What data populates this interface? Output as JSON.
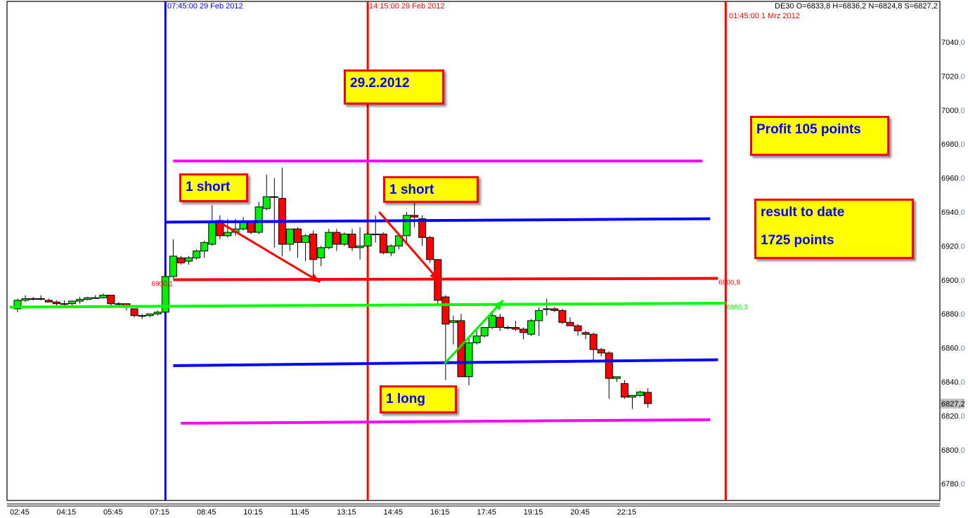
{
  "header": {
    "symbol": "DE30",
    "ohlc": "O=6833,8 H=6836,2 N=6824,8 S=6827,2"
  },
  "vertical_markers": [
    {
      "label": "07:45:00 29 Feb 2012",
      "time": "29.02 07:45",
      "color": "#0000ff"
    },
    {
      "label": "14:15:00 29 Feb 2012",
      "time": "29.02 14:15",
      "color": "#ff0000"
    },
    {
      "label": "01:45:00 1 Mrz 2012",
      "time": "01.03 01:45",
      "color": "#ff0000"
    }
  ],
  "notes": {
    "date": "29.2.2012",
    "short1": "1 short",
    "short2": "1 short",
    "long1": "1 long",
    "profit": "Profit 105 points",
    "result_line1": "result to date",
    "result_line2": "1725 points"
  },
  "colors": {
    "up": "#00ee00",
    "down": "#ff0000",
    "magenta": "#ff00ff",
    "blue": "#0000ff",
    "green": "#00ff00",
    "red": "#ff0000"
  },
  "chart_data": {
    "type": "candlestick",
    "symbol": "DE30",
    "interval_minutes": 15,
    "ylim": [
      6770,
      7050
    ],
    "y_ticks": [
      7040,
      7020,
      7000,
      6980,
      6960,
      6940,
      6920,
      6900,
      6880,
      6860,
      6840,
      6820,
      6800,
      6780
    ],
    "y_tick_labels": [
      "7040,0",
      "7020,0",
      "7000,0",
      "6980,0",
      "6960,0",
      "6940,0",
      "6920,0",
      "6900,0",
      "6880,0",
      "6860,0",
      "6840,0",
      "6827,2",
      "6820,0",
      "6800,0",
      "6780,0"
    ],
    "last_price_label": "6827,2",
    "last_price": 6827.2,
    "x_tick_labels": [
      "02:45",
      "04:15",
      "05:45",
      "07:15",
      "08:45",
      "10:15",
      "11:45",
      "13:15",
      "14:45",
      "16:15",
      "17:45",
      "19:15",
      "20:45",
      "22:15"
    ],
    "candles": [
      [
        "03:00",
        6883,
        6889,
        6881,
        6888
      ],
      [
        "03:15",
        6888,
        6891,
        6887,
        6889
      ],
      [
        "03:30",
        6889,
        6890,
        6888,
        6889
      ],
      [
        "03:45",
        6889,
        6891,
        6888,
        6889
      ],
      [
        "04:00",
        6888,
        6889,
        6887,
        6887
      ],
      [
        "04:15",
        6887,
        6888,
        6885,
        6886
      ],
      [
        "04:30",
        6886,
        6888,
        6884,
        6886
      ],
      [
        "04:45",
        6886,
        6888,
        6885,
        6887.5
      ],
      [
        "05:00",
        6887.5,
        6890,
        6886,
        6888.5
      ],
      [
        "05:15",
        6888.5,
        6890,
        6888,
        6889.5
      ],
      [
        "05:30",
        6889.5,
        6891,
        6889,
        6889.5
      ],
      [
        "05:45",
        6889.5,
        6892,
        6889,
        6891
      ],
      [
        "06:00",
        6891,
        6891,
        6884,
        6886
      ],
      [
        "06:15",
        6886,
        6887,
        6885,
        6886
      ],
      [
        "06:30",
        6886,
        6886,
        6882,
        6884
      ],
      [
        "06:45",
        6883,
        6883,
        6878,
        6879
      ],
      [
        "07:00",
        6879,
        6880,
        6877,
        6879
      ],
      [
        "07:15",
        6879,
        6880,
        6878,
        6880
      ],
      [
        "07:30",
        6880,
        6882,
        6879,
        6881
      ],
      [
        "07:45",
        6881,
        6905,
        6880,
        6902
      ],
      [
        "08:00",
        6902,
        6924,
        6901,
        6914
      ],
      [
        "08:15",
        6913,
        6914,
        6909,
        6910
      ],
      [
        "08:30",
        6911,
        6914,
        6909,
        6913
      ],
      [
        "08:45",
        6913,
        6918,
        6912,
        6917
      ],
      [
        "09:00",
        6917,
        6923,
        6913,
        6922
      ],
      [
        "09:15",
        6921,
        6944,
        6920,
        6934
      ],
      [
        "09:30",
        6935,
        6938,
        6924,
        6926
      ],
      [
        "09:45",
        6926,
        6936,
        6925,
        6928
      ],
      [
        "10:00",
        6928,
        6936,
        6926,
        6930
      ],
      [
        "10:15",
        6930,
        6937,
        6929,
        6934
      ],
      [
        "10:30",
        6934,
        6935,
        6927,
        6928
      ],
      [
        "10:45",
        6928,
        6946,
        6927,
        6943
      ],
      [
        "11:00",
        6942,
        6962,
        6941,
        6949
      ],
      [
        "11:15",
        6949,
        6960,
        6919,
        6949
      ],
      [
        "11:30",
        6948,
        6966,
        6914,
        6921
      ],
      [
        "11:45",
        6921,
        6930,
        6917,
        6930
      ],
      [
        "12:00",
        6930,
        6931,
        6913,
        6922
      ],
      [
        "12:15",
        6922,
        6927,
        6911,
        6926
      ],
      [
        "12:30",
        6927,
        6929,
        6903,
        6912
      ],
      [
        "12:45",
        6913,
        6920,
        6908,
        6919
      ],
      [
        "13:00",
        6919,
        6930,
        6918,
        6928
      ],
      [
        "13:15",
        6928,
        6930,
        6917,
        6921
      ],
      [
        "13:30",
        6921,
        6928,
        6920,
        6927
      ],
      [
        "13:45",
        6927,
        6930,
        6917,
        6919
      ],
      [
        "14:00",
        6919,
        6931,
        6912,
        6920
      ],
      [
        "14:15",
        6920,
        6928,
        6919,
        6927
      ],
      [
        "14:30",
        6927,
        6938,
        6922,
        6927
      ],
      [
        "14:45",
        6927,
        6928,
        6915,
        6916
      ],
      [
        "15:00",
        6916,
        6921,
        6914,
        6920
      ],
      [
        "15:15",
        6920,
        6926,
        6918,
        6926
      ],
      [
        "15:30",
        6926,
        6940,
        6921,
        6938
      ],
      [
        "15:45",
        6938,
        6946,
        6931,
        6937
      ],
      [
        "16:00",
        6936,
        6938,
        6920,
        6925
      ],
      [
        "16:15",
        6925,
        6926,
        6910,
        6912
      ],
      [
        "16:30",
        6912,
        6912,
        6886,
        6888
      ],
      [
        "16:45",
        6890,
        6891,
        6841,
        6874
      ],
      [
        "17:00",
        6875,
        6879,
        6862,
        6876
      ],
      [
        "17:15",
        6876,
        6880,
        6843,
        6843
      ],
      [
        "17:30",
        6843,
        6867,
        6838,
        6863
      ],
      [
        "17:45",
        6863,
        6870,
        6862,
        6867
      ],
      [
        "18:00",
        6867,
        6872,
        6866,
        6872
      ],
      [
        "18:15",
        6872,
        6881,
        6871,
        6879
      ],
      [
        "18:30",
        6878,
        6880,
        6870,
        6872
      ],
      [
        "18:45",
        6872,
        6873,
        6871,
        6872
      ],
      [
        "19:00",
        6872,
        6876,
        6870,
        6871
      ],
      [
        "19:15",
        6871,
        6872,
        6865,
        6869
      ],
      [
        "19:30",
        6868,
        6877,
        6867,
        6876
      ],
      [
        "19:45",
        6876,
        6884,
        6867,
        6882
      ],
      [
        "20:00",
        6883,
        6889,
        6879,
        6883
      ],
      [
        "20:15",
        6883,
        6884,
        6881,
        6882
      ],
      [
        "20:30",
        6882,
        6883,
        6874,
        6875
      ],
      [
        "20:45",
        6875,
        6878,
        6873,
        6873
      ],
      [
        "21:00",
        6873,
        6874,
        6867,
        6870
      ],
      [
        "21:15",
        6869,
        6870,
        6865,
        6868
      ],
      [
        "21:30",
        6868,
        6869,
        6852,
        6859
      ],
      [
        "21:45",
        6859,
        6860,
        6855,
        6857
      ],
      [
        "22:00",
        6857,
        6858,
        6830,
        6842
      ],
      [
        "22:15",
        6842,
        6843,
        6840,
        6843
      ],
      [
        "22:30",
        6839,
        6841,
        6830,
        6831
      ],
      [
        "22:45",
        6831,
        6832,
        6824,
        6832
      ],
      [
        "23:00",
        6832,
        6835,
        6831,
        6834
      ],
      [
        "23:15",
        6833.8,
        6836.2,
        6824.8,
        6827.2
      ]
    ],
    "trend_lines": [
      {
        "name": "magenta-upper",
        "color": "#ff00ff",
        "from": [
          "29.02 08:00",
          6970
        ],
        "to": [
          "01.03 01:00",
          6970
        ]
      },
      {
        "name": "blue-upper",
        "color": "#0000ff",
        "from": [
          "29.02 07:45",
          6934
        ],
        "to": [
          "01.03 01:15",
          6936
        ]
      },
      {
        "name": "red-middle",
        "color": "#ff0000",
        "from": [
          "29.02 08:00",
          6900.1
        ],
        "to": [
          "01.03 01:30",
          6900.9
        ],
        "label_start": "6900,1",
        "label_end": "6900,9"
      },
      {
        "name": "green-middle",
        "color": "#00ff00",
        "from": [
          "29.02 02:45",
          6884
        ],
        "to": [
          "01.03 01:45",
          6886.3
        ],
        "label_end": "6886,3"
      },
      {
        "name": "blue-lower",
        "color": "#0000ff",
        "from": [
          "29.02 08:00",
          6849.5
        ],
        "to": [
          "01.03 01:30",
          6853
        ]
      },
      {
        "name": "magenta-lower",
        "color": "#ff00ff",
        "from": [
          "29.02 08:15",
          6815.6
        ],
        "to": [
          "01.03 01:15",
          6817.7
        ]
      }
    ],
    "arrows": [
      {
        "color": "#ff0000",
        "from": [
          "29.02 09:37",
          6932.6
        ],
        "to": [
          "29.02 12:43",
          6898.7
        ]
      },
      {
        "color": "#ff0000",
        "from": [
          "29.02 14:37",
          6940
        ],
        "to": [
          "29.02 16:33",
          6899.5
        ]
      },
      {
        "color": "#00ee00",
        "from": [
          "29.02 16:43",
          6850.7
        ],
        "to": [
          "29.02 18:36",
          6888
        ]
      }
    ]
  }
}
